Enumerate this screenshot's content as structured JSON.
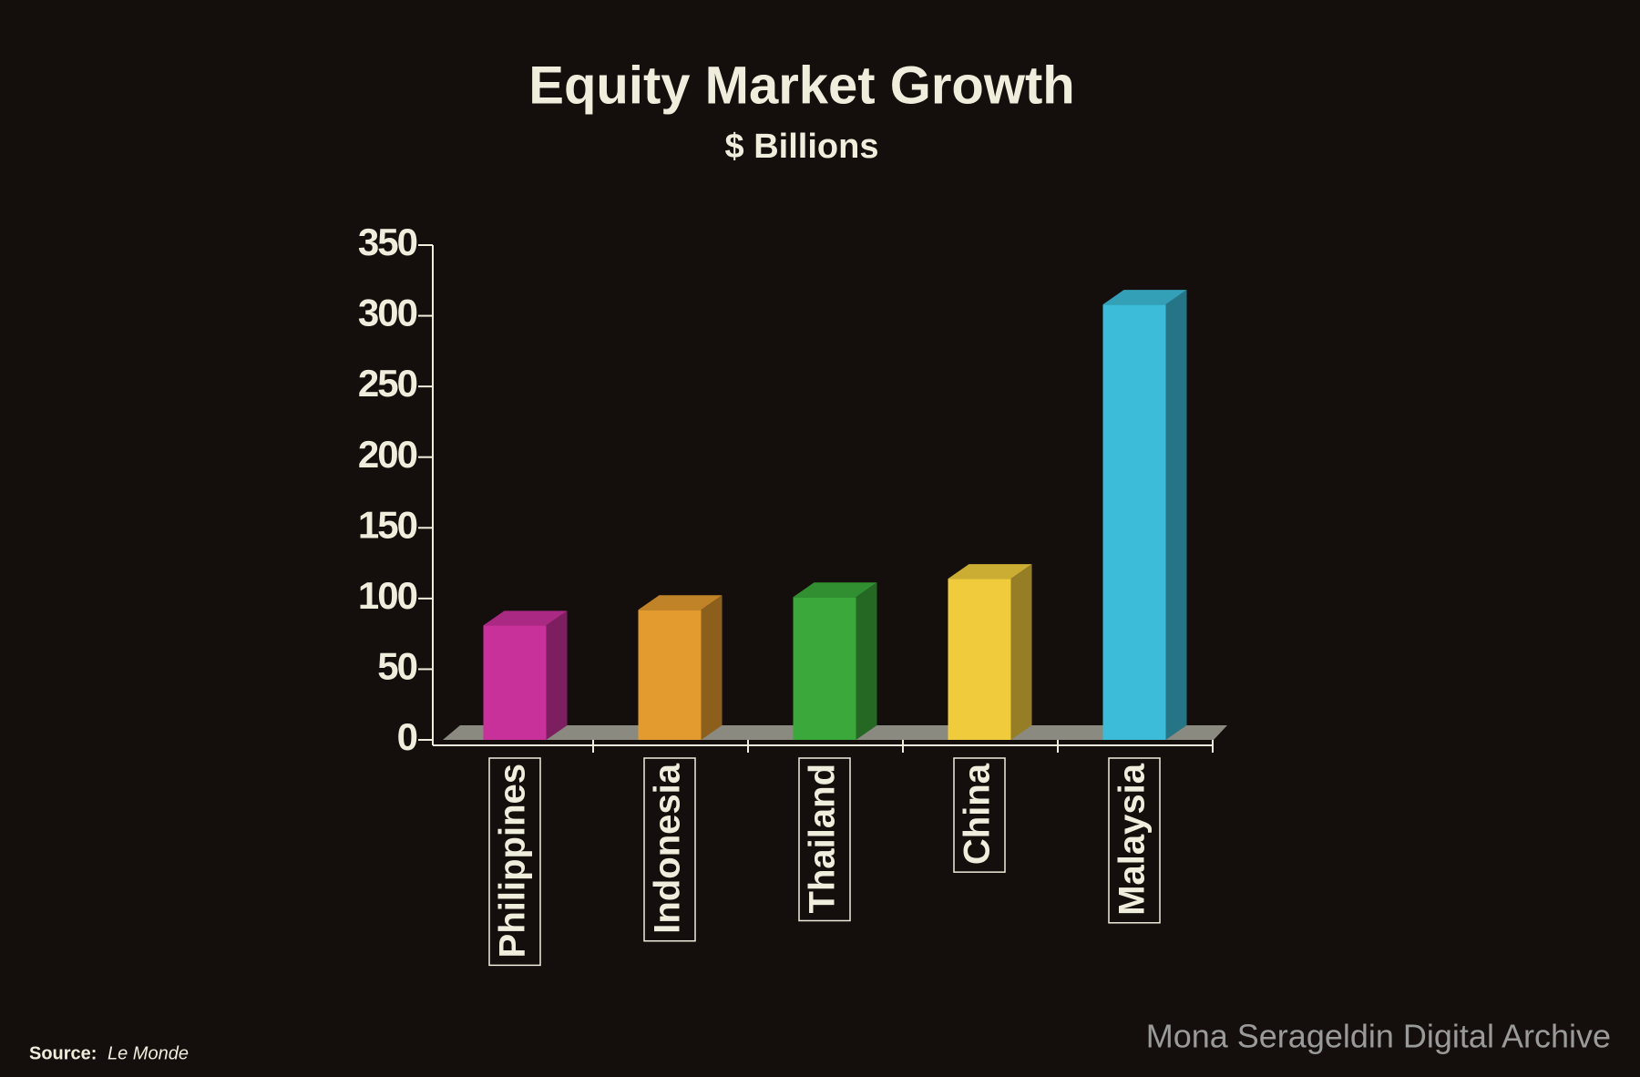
{
  "chart_data": {
    "type": "bar3d",
    "title": "Equity Market Growth",
    "subtitle": "$ Billions",
    "categories": [
      "Philippines",
      "Indonesia",
      "Thailand",
      "China",
      "Malaysia"
    ],
    "values": [
      81,
      92,
      101,
      114,
      308
    ],
    "colors": [
      "#c8309a",
      "#e39a2e",
      "#3aa83a",
      "#f0cc3c",
      "#3cbcd8"
    ],
    "ylim": [
      0,
      350
    ],
    "yticks": [
      0,
      50,
      100,
      150,
      200,
      250,
      300,
      350
    ],
    "source_label": "Source:",
    "source_name": "Le Monde",
    "watermark": "Mona Serageldin Digital Archive"
  }
}
